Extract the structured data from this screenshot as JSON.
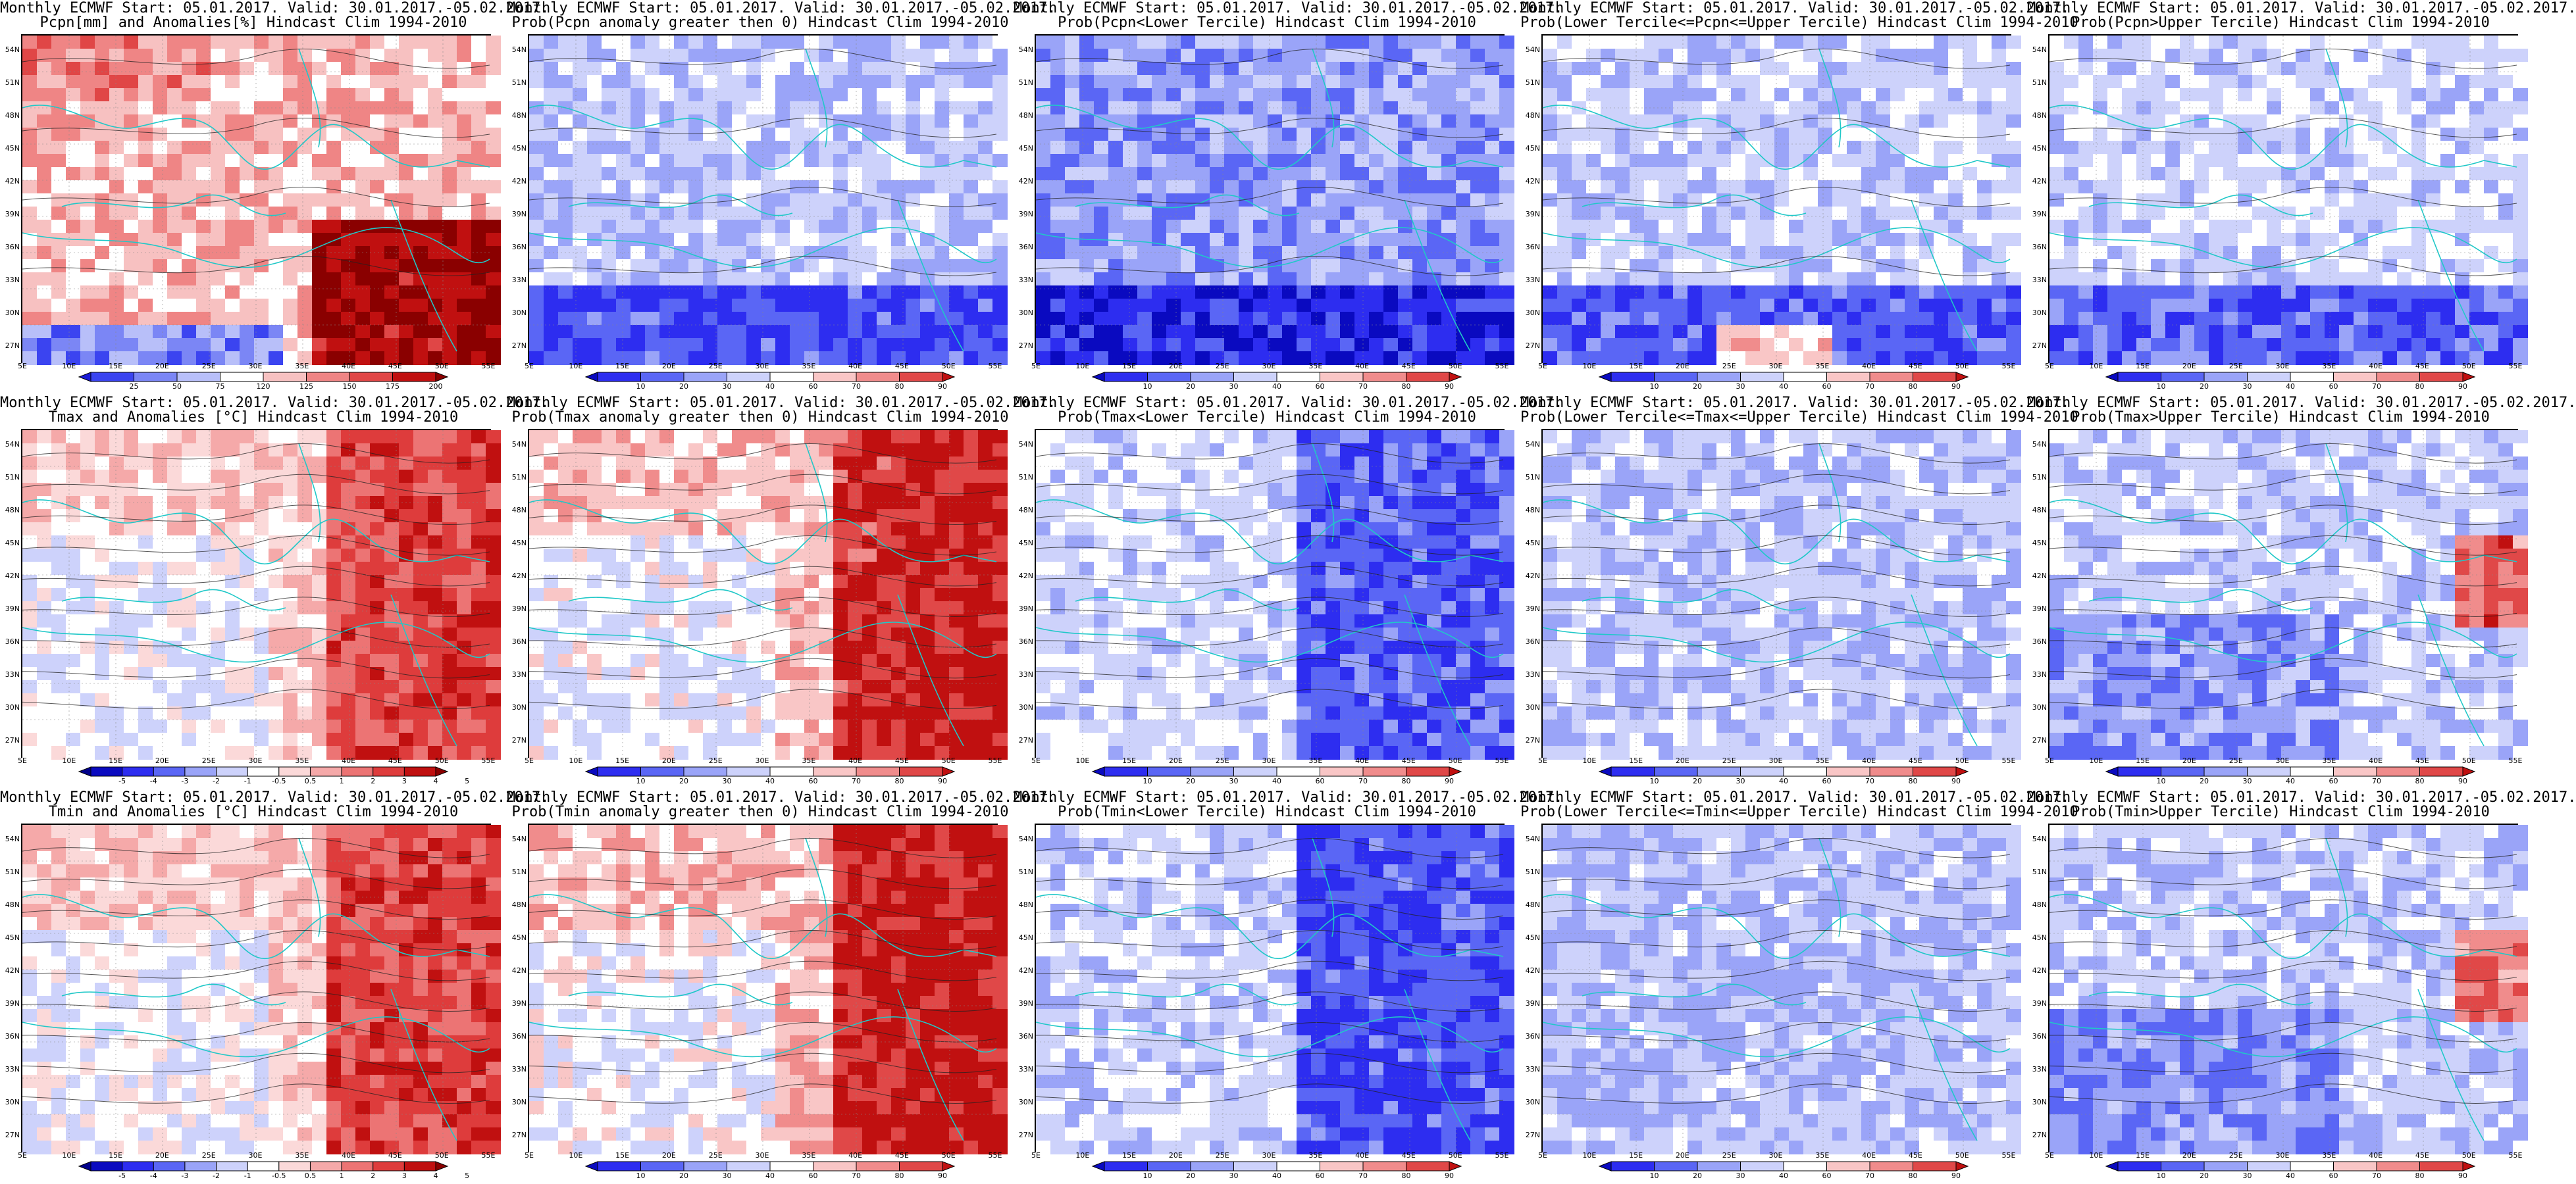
{
  "rows": [
    {
      "panels": [
        {
          "line1": "Monthly ECMWF Start: 05.01.2017. Valid: 30.01.2017.-05.02.2017.",
          "line2": "Pcpn[mm] and Anomalies[%] Hindcast Clim 1994-2010",
          "palette": "pcpn_anom"
        },
        {
          "line1": "Monthly ECMWF Start: 05.01.2017. Valid: 30.01.2017.-05.02.2017.",
          "line2": "Prob(Pcpn anomaly greater then 0) Hindcast Clim 1994-2010",
          "palette": "prob"
        },
        {
          "line1": "Monthly ECMWF Start: 05.01.2017. Valid: 30.01.2017.-05.02.2017.",
          "line2": "Prob(Pcpn<Lower Tercile) Hindcast Clim 1994-2010",
          "palette": "prob"
        },
        {
          "line1": "Monthly ECMWF Start: 05.01.2017. Valid: 30.01.2017.-05.02.2017.",
          "line2": "Prob(Lower Tercile<=Pcpn<=Upper Tercile) Hindcast Clim 1994-2010",
          "palette": "prob"
        },
        {
          "line1": "Monthly ECMWF Start: 05.01.2017. Valid: 30.01.2017.-05.02.2017.",
          "line2": "Prob(Pcpn>Upper Tercile) Hindcast Clim 1994-2010",
          "palette": "prob"
        }
      ]
    },
    {
      "panels": [
        {
          "line1": "Monthly ECMWF Start: 05.01.2017. Valid: 30.01.2017.-05.02.2017.",
          "line2": "Tmax and Anomalies [°C] Hindcast Clim 1994-2010",
          "palette": "temp_anom"
        },
        {
          "line1": "Monthly ECMWF Start: 05.01.2017. Valid: 30.01.2017.-05.02.2017.",
          "line2": "Prob(Tmax anomaly greater then 0) Hindcast Clim 1994-2010",
          "palette": "prob"
        },
        {
          "line1": "Monthly ECMWF Start: 05.01.2017. Valid: 30.01.2017.-05.02.2017.",
          "line2": "Prob(Tmax<Lower Tercile) Hindcast Clim 1994-2010",
          "palette": "prob"
        },
        {
          "line1": "Monthly ECMWF Start: 05.01.2017. Valid: 30.01.2017.-05.02.2017.",
          "line2": "Prob(Lower Tercile<=Tmax<=Upper Tercile) Hindcast Clim 1994-2010",
          "palette": "prob"
        },
        {
          "line1": "Monthly ECMWF Start: 05.01.2017. Valid: 30.01.2017.-05.02.2017.",
          "line2": "Prob(Tmax>Upper Tercile) Hindcast Clim 1994-2010",
          "palette": "prob"
        }
      ]
    },
    {
      "panels": [
        {
          "line1": "Monthly ECMWF Start: 05.01.2017. Valid: 30.01.2017.-05.02.2017.",
          "line2": "Tmin and Anomalies [°C] Hindcast Clim 1994-2010",
          "palette": "temp_anom"
        },
        {
          "line1": "Monthly ECMWF Start: 05.01.2017. Valid: 30.01.2017.-05.02.2017.",
          "line2": "Prob(Tmin anomaly greater then 0) Hindcast Clim 1994-2010",
          "palette": "prob"
        },
        {
          "line1": "Monthly ECMWF Start: 05.01.2017. Valid: 30.01.2017.-05.02.2017.",
          "line2": "Prob(Tmin<Lower Tercile) Hindcast Clim 1994-2010",
          "palette": "prob"
        },
        {
          "line1": "Monthly ECMWF Start: 05.01.2017. Valid: 30.01.2017.-05.02.2017.",
          "line2": "Prob(Lower Tercile<=Tmin<=Upper Tercile) Hindcast Clim 1994-2010",
          "palette": "prob"
        },
        {
          "line1": "Monthly ECMWF Start: 05.01.2017. Valid: 30.01.2017.-05.02.2017.",
          "line2": "Prob(Tmin>Upper Tercile) Hindcast Clim 1994-2010",
          "palette": "prob"
        }
      ]
    }
  ],
  "lat_labels": [
    "54N",
    "51N",
    "48N",
    "45N",
    "42N",
    "39N",
    "36N",
    "33N",
    "30N",
    "27N"
  ],
  "lon_labels": [
    "5E",
    "10E",
    "15E",
    "20E",
    "25E",
    "30E",
    "35E",
    "40E",
    "45E",
    "50E",
    "55E"
  ],
  "colorbars": {
    "pcpn_anom": {
      "labels": [
        "25",
        "50",
        "75",
        "120",
        "125",
        "150",
        "175",
        "200"
      ],
      "colors": [
        "#1a1ad6",
        "#3b44f0",
        "#7b86f5",
        "#b8bff9",
        "#ffffff",
        "#f7c1c1",
        "#ef8585",
        "#e04646",
        "#c01010",
        "#8a0000"
      ]
    },
    "prob": {
      "labels": [
        "10",
        "20",
        "30",
        "40",
        "60",
        "70",
        "80",
        "90"
      ],
      "colors": [
        "#0a0ac0",
        "#2d2df0",
        "#5a66f5",
        "#9aa4f8",
        "#cdd2fb",
        "#ffffff",
        "#f9c6c6",
        "#f08c8c",
        "#e04848",
        "#c01010"
      ]
    },
    "temp_anom": {
      "labels": [
        "-5",
        "-4",
        "-3",
        "-2",
        "-1",
        "-0.5",
        "0.5",
        "1",
        "2",
        "3",
        "4",
        "5"
      ],
      "colors": [
        "#00008a",
        "#0a0ac0",
        "#2d2df0",
        "#5a66f5",
        "#9aa4f8",
        "#cdd2fb",
        "#ffffff",
        "#fbd9d9",
        "#f5a9a9",
        "#ec7474",
        "#de3c3c",
        "#c01010",
        "#8a0000"
      ]
    }
  }
}
